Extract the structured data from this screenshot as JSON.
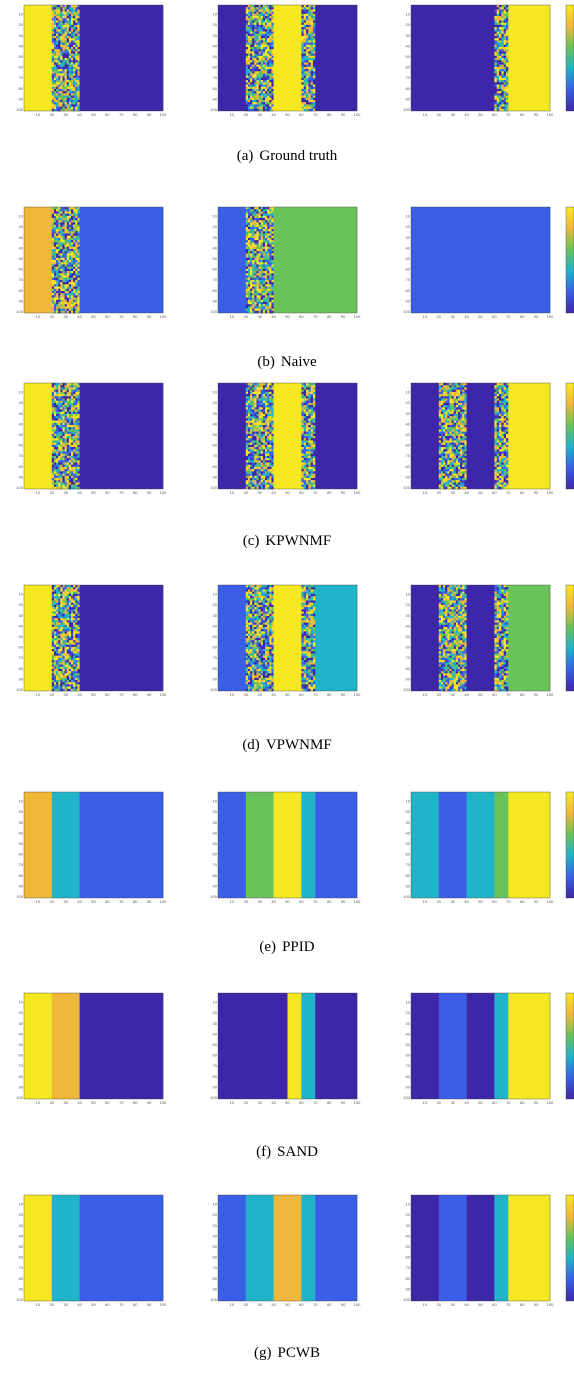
{
  "colors": {
    "deep": "#3d26a8",
    "blue": "#3b5ee6",
    "cyan": "#1fb4c8",
    "green": "#6ac25a",
    "orange": "#f0b83a",
    "yellow": "#f6e820"
  },
  "axis": {
    "x_ticks": [
      "10",
      "20",
      "30",
      "40",
      "50",
      "60",
      "70",
      "80",
      "90",
      "100"
    ],
    "y_ticks": [
      "10",
      "20",
      "30",
      "40",
      "50",
      "60",
      "70",
      "80",
      "90",
      "100"
    ]
  },
  "rows": [
    {
      "label": "(a)",
      "caption": "Ground truth",
      "panels": [
        {
          "bands": [
            [
              0,
              20,
              "yellow"
            ],
            [
              20,
              40,
              "noise"
            ],
            [
              40,
              100,
              "deep"
            ]
          ]
        },
        {
          "bands": [
            [
              0,
              20,
              "deep"
            ],
            [
              20,
              40,
              "noise"
            ],
            [
              40,
              60,
              "yellow"
            ],
            [
              60,
              70,
              "noise"
            ],
            [
              70,
              100,
              "deep"
            ]
          ]
        },
        {
          "bands": [
            [
              0,
              60,
              "deep"
            ],
            [
              60,
              70,
              "noise"
            ],
            [
              70,
              100,
              "yellow"
            ]
          ]
        }
      ]
    },
    {
      "label": "(b)",
      "caption": "Naive",
      "panels": [
        {
          "bands": [
            [
              0,
              20,
              "orange"
            ],
            [
              20,
              40,
              "noise"
            ],
            [
              40,
              100,
              "blue"
            ]
          ]
        },
        {
          "bands": [
            [
              0,
              20,
              "blue"
            ],
            [
              20,
              40,
              "noise"
            ],
            [
              40,
              100,
              "green"
            ]
          ]
        },
        {
          "bands": [
            [
              0,
              100,
              "blue"
            ]
          ]
        }
      ]
    },
    {
      "label": "(c)",
      "caption": "KPWNMF",
      "panels": [
        {
          "bands": [
            [
              0,
              20,
              "yellow"
            ],
            [
              20,
              40,
              "noise"
            ],
            [
              40,
              100,
              "deep"
            ]
          ]
        },
        {
          "bands": [
            [
              0,
              20,
              "deep"
            ],
            [
              20,
              40,
              "noise"
            ],
            [
              40,
              60,
              "yellow"
            ],
            [
              60,
              70,
              "noise"
            ],
            [
              70,
              100,
              "deep"
            ]
          ]
        },
        {
          "bands": [
            [
              0,
              20,
              "deep"
            ],
            [
              20,
              40,
              "noise"
            ],
            [
              40,
              60,
              "deep"
            ],
            [
              60,
              70,
              "noise"
            ],
            [
              70,
              100,
              "yellow"
            ]
          ]
        }
      ]
    },
    {
      "label": "(d)",
      "caption": "VPWNMF",
      "panels": [
        {
          "bands": [
            [
              0,
              20,
              "yellow"
            ],
            [
              20,
              40,
              "noise"
            ],
            [
              40,
              100,
              "deep"
            ]
          ]
        },
        {
          "bands": [
            [
              0,
              20,
              "blue"
            ],
            [
              20,
              40,
              "noise"
            ],
            [
              40,
              60,
              "yellow"
            ],
            [
              60,
              70,
              "noise"
            ],
            [
              70,
              100,
              "cyan"
            ]
          ]
        },
        {
          "bands": [
            [
              0,
              20,
              "deep"
            ],
            [
              20,
              40,
              "noise"
            ],
            [
              40,
              60,
              "deep"
            ],
            [
              60,
              70,
              "noise"
            ],
            [
              70,
              100,
              "green"
            ]
          ]
        }
      ]
    },
    {
      "label": "(e)",
      "caption": "PPID",
      "panels": [
        {
          "bands": [
            [
              0,
              20,
              "orange"
            ],
            [
              20,
              40,
              "cyan"
            ],
            [
              40,
              100,
              "blue"
            ]
          ]
        },
        {
          "bands": [
            [
              0,
              20,
              "blue"
            ],
            [
              20,
              40,
              "green"
            ],
            [
              40,
              60,
              "yellow"
            ],
            [
              60,
              70,
              "cyan"
            ],
            [
              70,
              100,
              "blue"
            ]
          ]
        },
        {
          "bands": [
            [
              0,
              20,
              "cyan"
            ],
            [
              20,
              40,
              "blue"
            ],
            [
              40,
              60,
              "cyan"
            ],
            [
              60,
              70,
              "green"
            ],
            [
              70,
              100,
              "yellow"
            ]
          ]
        }
      ]
    },
    {
      "label": "(f)",
      "caption": "SAND",
      "panels": [
        {
          "bands": [
            [
              0,
              20,
              "yellow"
            ],
            [
              20,
              40,
              "orange"
            ],
            [
              40,
              100,
              "deep"
            ]
          ]
        },
        {
          "bands": [
            [
              0,
              50,
              "deep"
            ],
            [
              50,
              60,
              "yellow"
            ],
            [
              60,
              70,
              "cyan"
            ],
            [
              70,
              100,
              "deep"
            ]
          ]
        },
        {
          "bands": [
            [
              0,
              20,
              "deep"
            ],
            [
              20,
              40,
              "blue"
            ],
            [
              40,
              60,
              "deep"
            ],
            [
              60,
              70,
              "cyan"
            ],
            [
              70,
              100,
              "yellow"
            ]
          ]
        }
      ]
    },
    {
      "label": "(g)",
      "caption": "PCWB",
      "panels": [
        {
          "bands": [
            [
              0,
              20,
              "yellow"
            ],
            [
              20,
              40,
              "cyan"
            ],
            [
              40,
              100,
              "blue"
            ]
          ]
        },
        {
          "bands": [
            [
              0,
              20,
              "blue"
            ],
            [
              20,
              40,
              "cyan"
            ],
            [
              40,
              60,
              "orange"
            ],
            [
              60,
              70,
              "cyan"
            ],
            [
              70,
              100,
              "blue"
            ]
          ]
        },
        {
          "bands": [
            [
              0,
              20,
              "deep"
            ],
            [
              20,
              40,
              "blue"
            ],
            [
              40,
              60,
              "deep"
            ],
            [
              60,
              70,
              "cyan"
            ],
            [
              70,
              100,
              "yellow"
            ]
          ]
        }
      ]
    }
  ]
}
